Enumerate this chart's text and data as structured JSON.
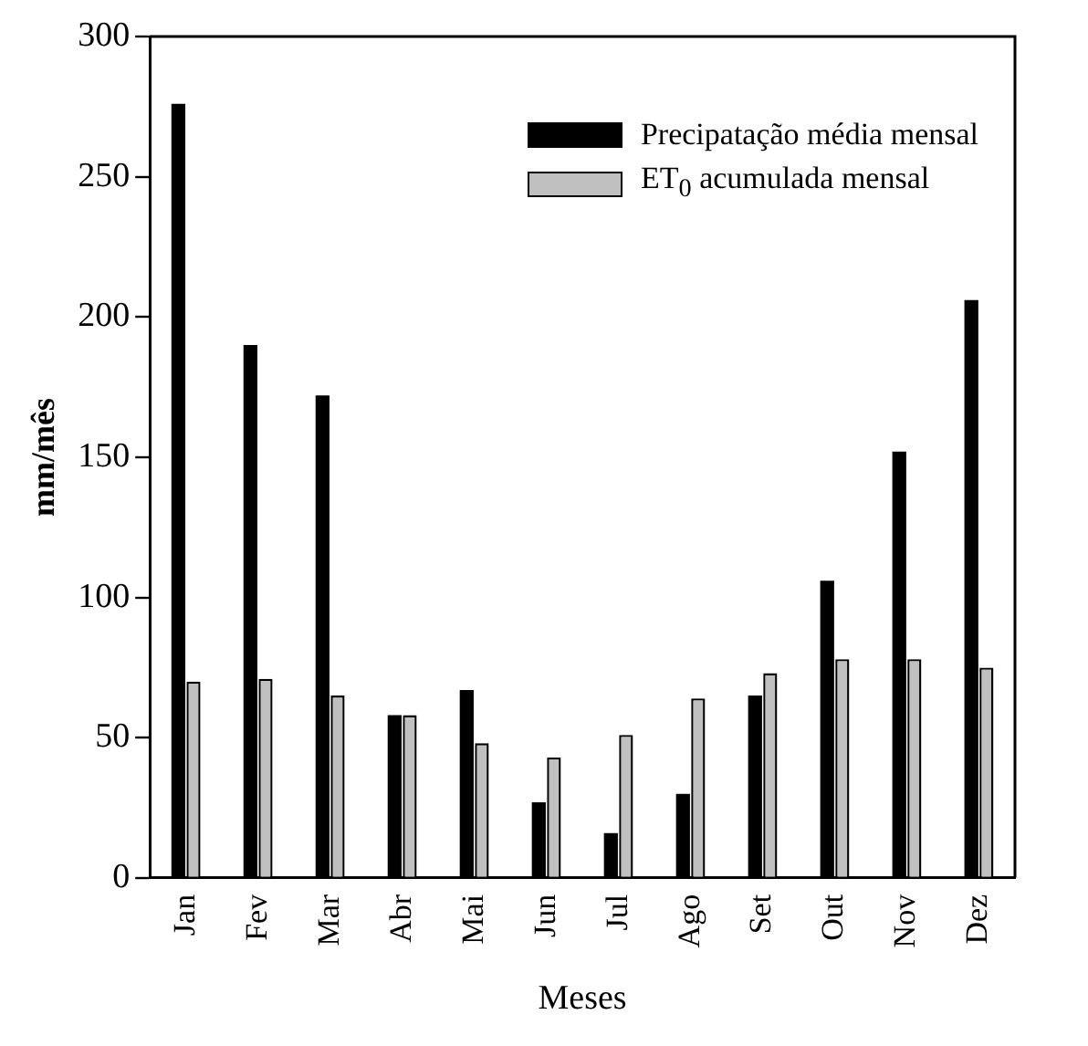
{
  "chart_data": {
    "type": "bar",
    "xlabel": "Meses",
    "ylabel": "mm/mês",
    "categories": [
      "Jan",
      "Fev",
      "Mar",
      "Abr",
      "Mai",
      "Jun",
      "Jul",
      "Ago",
      "Set",
      "Out",
      "Nov",
      "Dez"
    ],
    "series": [
      {
        "name": "Precipatação média mensal",
        "color": "#000000",
        "values": [
          276,
          190,
          172,
          58,
          67,
          27,
          16,
          30,
          65,
          106,
          152,
          206
        ]
      },
      {
        "name": "ET$_{0}$ acumulada mensal",
        "color": "#c0c0c0",
        "values": [
          70,
          71,
          65,
          58,
          48,
          43,
          51,
          64,
          73,
          78,
          78,
          75
        ]
      }
    ],
    "ylim": [
      0,
      300
    ],
    "yticks": [
      0,
      50,
      100,
      150,
      200,
      250,
      300
    ],
    "grid": false,
    "legend": "top right"
  }
}
